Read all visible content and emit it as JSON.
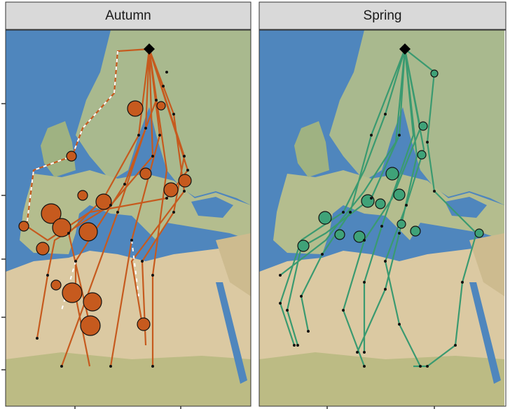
{
  "panels": [
    {
      "title": "Autumn"
    },
    {
      "title": "Spring"
    }
  ]
}
